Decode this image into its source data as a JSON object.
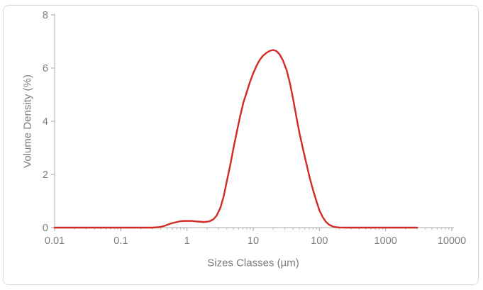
{
  "chart_data": {
    "type": "line",
    "title": "",
    "xlabel": "Sizes Classes (µm)",
    "ylabel": "Volume Density (%)",
    "x_scale": "log",
    "y_scale": "linear",
    "xlim": [
      0.01,
      10000
    ],
    "ylim": [
      0,
      8
    ],
    "x_tick_labels": [
      "0.01",
      "0.1",
      "1",
      "10",
      "100",
      "1000",
      "10000"
    ],
    "x_tick_values": [
      0.01,
      0.1,
      1,
      10,
      100,
      1000,
      10000
    ],
    "y_tick_labels": [
      "0",
      "2",
      "4",
      "6",
      "8"
    ],
    "y_tick_values": [
      0,
      2,
      4,
      6,
      8
    ],
    "grid": "off",
    "legend": "none",
    "annotations": {
      "main_peak": {
        "x_um": 20,
        "y_percent": 6.7
      },
      "minor_bump": {
        "x_um": 1,
        "y_percent": 0.25
      },
      "curve_extent_um": [
        0.01,
        3000
      ]
    },
    "series": [
      {
        "name": "volume-density",
        "color": "#d22a25",
        "points": [
          [
            0.01,
            0
          ],
          [
            0.05,
            0
          ],
          [
            0.1,
            0
          ],
          [
            0.15,
            0
          ],
          [
            0.2,
            0
          ],
          [
            0.25,
            0
          ],
          [
            0.3,
            0
          ],
          [
            0.35,
            0.01
          ],
          [
            0.4,
            0.03
          ],
          [
            0.45,
            0.06
          ],
          [
            0.5,
            0.1
          ],
          [
            0.55,
            0.14
          ],
          [
            0.6,
            0.17
          ],
          [
            0.65,
            0.19
          ],
          [
            0.7,
            0.21
          ],
          [
            0.8,
            0.24
          ],
          [
            0.9,
            0.25
          ],
          [
            1,
            0.25
          ],
          [
            1.2,
            0.25
          ],
          [
            1.4,
            0.23
          ],
          [
            1.6,
            0.22
          ],
          [
            1.8,
            0.21
          ],
          [
            2,
            0.22
          ],
          [
            2.2,
            0.24
          ],
          [
            2.5,
            0.31
          ],
          [
            2.8,
            0.45
          ],
          [
            3.2,
            0.75
          ],
          [
            3.6,
            1.2
          ],
          [
            4,
            1.75
          ],
          [
            4.5,
            2.35
          ],
          [
            5,
            2.95
          ],
          [
            5.6,
            3.55
          ],
          [
            6.3,
            4.15
          ],
          [
            7.1,
            4.7
          ],
          [
            8,
            5.1
          ],
          [
            9,
            5.5
          ],
          [
            10,
            5.8
          ],
          [
            11.2,
            6.08
          ],
          [
            12.5,
            6.3
          ],
          [
            14,
            6.46
          ],
          [
            16,
            6.58
          ],
          [
            18,
            6.65
          ],
          [
            20,
            6.68
          ],
          [
            22.4,
            6.64
          ],
          [
            25,
            6.52
          ],
          [
            28,
            6.3
          ],
          [
            32,
            5.92
          ],
          [
            36,
            5.42
          ],
          [
            40,
            4.85
          ],
          [
            45,
            4.15
          ],
          [
            50,
            3.55
          ],
          [
            56,
            3.0
          ],
          [
            63,
            2.45
          ],
          [
            71,
            1.9
          ],
          [
            80,
            1.42
          ],
          [
            90,
            1.0
          ],
          [
            100,
            0.65
          ],
          [
            112,
            0.4
          ],
          [
            125,
            0.22
          ],
          [
            140,
            0.11
          ],
          [
            160,
            0.04
          ],
          [
            180,
            0.015
          ],
          [
            200,
            0.005
          ],
          [
            250,
            0
          ],
          [
            500,
            0
          ],
          [
            1000,
            0
          ],
          [
            2000,
            0
          ],
          [
            3000,
            0
          ]
        ]
      }
    ]
  },
  "colors": {
    "curve": "#d22a25",
    "axis_line": "#c6c6c6",
    "tick_mark": "#b5b5b5",
    "tick_text": "#7c7c7c",
    "axis_title_text": "#7c7c7c",
    "card_border": "#d9d9d9",
    "background": "#ffffff"
  }
}
